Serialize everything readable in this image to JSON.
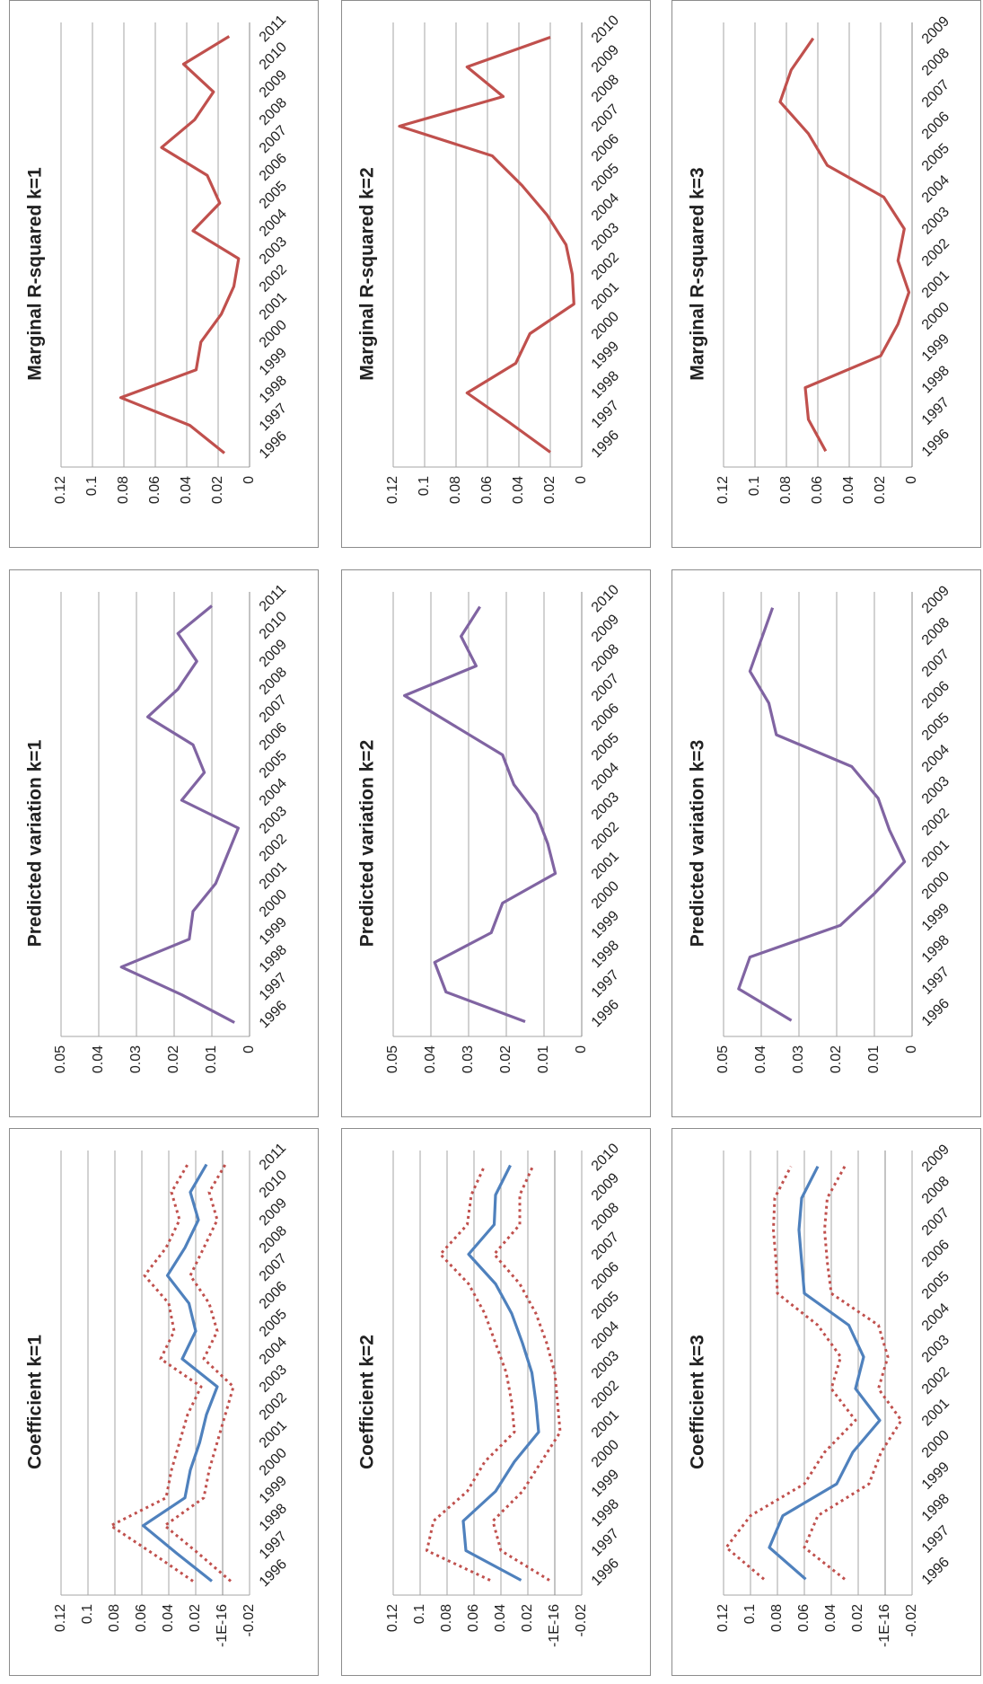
{
  "chart_data": [
    {
      "type": "line",
      "title": "Marginal R-squared k=1",
      "categories": [
        "1996",
        "1997",
        "1998",
        "1999",
        "2000",
        "2001",
        "2002",
        "2003",
        "2004",
        "2005",
        "2006",
        "2007",
        "2008",
        "2009",
        "2010",
        "2011"
      ],
      "series": [
        {
          "color": "#c0504d",
          "style": "solid",
          "values": [
            0.016,
            0.038,
            0.082,
            0.034,
            0.031,
            0.018,
            0.01,
            0.007,
            0.036,
            0.019,
            0.027,
            0.056,
            0.035,
            0.023,
            0.042,
            0.013
          ]
        }
      ],
      "ylim": [
        0,
        0.12
      ],
      "yticks": [
        0,
        0.02,
        0.04,
        0.06,
        0.08,
        0.1,
        0.12
      ],
      "grid": true
    },
    {
      "type": "line",
      "title": "Marginal R-squared k=2",
      "categories": [
        "1996",
        "1997",
        "1998",
        "1999",
        "2000",
        "2001",
        "2002",
        "2003",
        "2004",
        "2005",
        "2006",
        "2007",
        "2008",
        "2009",
        "2010"
      ],
      "series": [
        {
          "color": "#c0504d",
          "style": "solid",
          "values": [
            0.02,
            0.046,
            0.073,
            0.042,
            0.033,
            0.005,
            0.006,
            0.01,
            0.022,
            0.038,
            0.057,
            0.116,
            0.05,
            0.073,
            0.02
          ]
        }
      ],
      "ylim": [
        0,
        0.12
      ],
      "yticks": [
        0,
        0.02,
        0.04,
        0.06,
        0.08,
        0.1,
        0.12
      ],
      "grid": true
    },
    {
      "type": "line",
      "title": "Marginal R-squared k=3",
      "categories": [
        "1996",
        "1997",
        "1998",
        "1999",
        "2000",
        "2001",
        "2002",
        "2003",
        "2004",
        "2005",
        "2006",
        "2007",
        "2008",
        "2009"
      ],
      "series": [
        {
          "color": "#c0504d",
          "style": "solid",
          "values": [
            0.055,
            0.066,
            0.068,
            0.02,
            0.009,
            0.002,
            0.009,
            0.005,
            0.018,
            0.054,
            0.066,
            0.084,
            0.077,
            0.063
          ]
        }
      ],
      "ylim": [
        0,
        0.12
      ],
      "yticks": [
        0,
        0.02,
        0.04,
        0.06,
        0.08,
        0.1,
        0.12
      ],
      "grid": true
    },
    {
      "type": "line",
      "title": "Predicted variation k=1",
      "categories": [
        "1996",
        "1997",
        "1998",
        "1999",
        "2000",
        "2001",
        "2002",
        "2003",
        "2004",
        "2005",
        "2006",
        "2007",
        "2008",
        "2009",
        "2010",
        "2011"
      ],
      "series": [
        {
          "color": "#8064a2",
          "style": "solid",
          "values": [
            0.004,
            0.018,
            0.034,
            0.016,
            0.015,
            0.009,
            0.006,
            0.003,
            0.018,
            0.012,
            0.015,
            0.027,
            0.019,
            0.014,
            0.019,
            0.01
          ]
        }
      ],
      "ylim": [
        0,
        0.05
      ],
      "yticks": [
        0,
        0.01,
        0.02,
        0.03,
        0.04,
        0.05
      ],
      "grid": true
    },
    {
      "type": "line",
      "title": "Predicted variation k=2",
      "categories": [
        "1996",
        "1997",
        "1998",
        "1999",
        "2000",
        "2001",
        "2002",
        "2003",
        "2004",
        "2005",
        "2006",
        "2007",
        "2008",
        "2009",
        "2010"
      ],
      "series": [
        {
          "color": "#8064a2",
          "style": "solid",
          "values": [
            0.015,
            0.036,
            0.039,
            0.024,
            0.021,
            0.007,
            0.009,
            0.012,
            0.018,
            0.021,
            0.034,
            0.047,
            0.028,
            0.032,
            0.027
          ]
        }
      ],
      "ylim": [
        0,
        0.05
      ],
      "yticks": [
        0,
        0.01,
        0.02,
        0.03,
        0.04,
        0.05
      ],
      "grid": true
    },
    {
      "type": "line",
      "title": "Predicted variation k=3",
      "categories": [
        "1996",
        "1997",
        "1998",
        "1999",
        "2000",
        "2001",
        "2002",
        "2003",
        "2004",
        "2005",
        "2006",
        "2007",
        "2008",
        "2009"
      ],
      "series": [
        {
          "color": "#8064a2",
          "style": "solid",
          "values": [
            0.032,
            0.046,
            0.043,
            0.019,
            0.01,
            0.002,
            0.006,
            0.009,
            0.016,
            0.036,
            0.038,
            0.043,
            0.04,
            0.037
          ]
        }
      ],
      "ylim": [
        0,
        0.05
      ],
      "yticks": [
        0,
        0.01,
        0.02,
        0.03,
        0.04,
        0.05
      ],
      "grid": true
    },
    {
      "type": "line",
      "title": "Coefficient k=1",
      "categories": [
        "1996",
        "1997",
        "1998",
        "1999",
        "2000",
        "2001",
        "2002",
        "2003",
        "2004",
        "2005",
        "2006",
        "2007",
        "2008",
        "2009",
        "2010",
        "2011"
      ],
      "series": [
        {
          "color": "#4f81bd",
          "style": "solid",
          "values": [
            0.008,
            0.034,
            0.059,
            0.028,
            0.024,
            0.017,
            0.012,
            0.004,
            0.03,
            0.02,
            0.025,
            0.041,
            0.028,
            0.018,
            0.024,
            0.012
          ]
        },
        {
          "color": "#c0504d",
          "style": "dotted",
          "values": [
            0.022,
            0.052,
            0.083,
            0.042,
            0.038,
            0.032,
            0.026,
            0.016,
            0.046,
            0.036,
            0.04,
            0.058,
            0.042,
            0.032,
            0.038,
            0.026
          ]
        },
        {
          "color": "#c0504d",
          "style": "dotted",
          "values": [
            -0.006,
            0.018,
            0.043,
            0.014,
            0.01,
            0.004,
            -0.002,
            -0.008,
            0.014,
            0.004,
            0.01,
            0.024,
            0.014,
            0.004,
            0.01,
            -0.002
          ]
        }
      ],
      "ylim": [
        -0.02,
        0.12
      ],
      "yticks": [
        -0.02,
        {
          "value": -1e-16,
          "label": "-1E-16"
        },
        0.02,
        0.04,
        0.06,
        0.08,
        0.1,
        0.12
      ],
      "grid": true
    },
    {
      "type": "line",
      "title": "Coefficient k=2",
      "categories": [
        "1996",
        "1997",
        "1998",
        "1999",
        "2000",
        "2001",
        "2002",
        "2003",
        "2004",
        "2005",
        "2006",
        "2007",
        "2008",
        "2009",
        "2010"
      ],
      "series": [
        {
          "color": "#4f81bd",
          "style": "solid",
          "values": [
            0.025,
            0.066,
            0.068,
            0.044,
            0.03,
            0.012,
            0.014,
            0.017,
            0.024,
            0.032,
            0.044,
            0.064,
            0.045,
            0.044,
            0.033
          ]
        },
        {
          "color": "#c0504d",
          "style": "dotted",
          "values": [
            0.048,
            0.095,
            0.09,
            0.065,
            0.052,
            0.03,
            0.032,
            0.036,
            0.044,
            0.052,
            0.064,
            0.085,
            0.065,
            0.062,
            0.052
          ]
        },
        {
          "color": "#c0504d",
          "style": "dotted",
          "values": [
            0.004,
            0.04,
            0.046,
            0.024,
            0.01,
            -0.004,
            -0.002,
            0.0,
            0.006,
            0.014,
            0.026,
            0.045,
            0.026,
            0.026,
            0.016
          ]
        }
      ],
      "ylim": [
        -0.02,
        0.12
      ],
      "yticks": [
        -0.02,
        {
          "value": -1e-16,
          "label": "-1E-16"
        },
        0.02,
        0.04,
        0.06,
        0.08,
        0.1,
        0.12
      ],
      "grid": true
    },
    {
      "type": "line",
      "title": "Coefficient k=3",
      "categories": [
        "1996",
        "1997",
        "1998",
        "1999",
        "2000",
        "2001",
        "2002",
        "2003",
        "2004",
        "2005",
        "2006",
        "2007",
        "2008",
        "2009"
      ],
      "series": [
        {
          "color": "#4f81bd",
          "style": "solid",
          "values": [
            0.059,
            0.086,
            0.076,
            0.036,
            0.024,
            0.004,
            0.022,
            0.016,
            0.027,
            0.06,
            0.062,
            0.064,
            0.062,
            0.05
          ]
        },
        {
          "color": "#c0504d",
          "style": "dotted",
          "values": [
            0.09,
            0.118,
            0.1,
            0.06,
            0.045,
            0.022,
            0.04,
            0.033,
            0.05,
            0.08,
            0.081,
            0.083,
            0.082,
            0.07
          ]
        },
        {
          "color": "#c0504d",
          "style": "dotted",
          "values": [
            0.03,
            0.06,
            0.05,
            0.012,
            0.003,
            -0.012,
            0.005,
            -0.002,
            0.005,
            0.04,
            0.043,
            0.045,
            0.043,
            0.03
          ]
        }
      ],
      "ylim": [
        -0.02,
        0.12
      ],
      "yticks": [
        -0.02,
        {
          "value": -1e-16,
          "label": "-1E-16"
        },
        0.02,
        0.04,
        0.06,
        0.08,
        0.1,
        0.12
      ],
      "grid": true
    }
  ]
}
